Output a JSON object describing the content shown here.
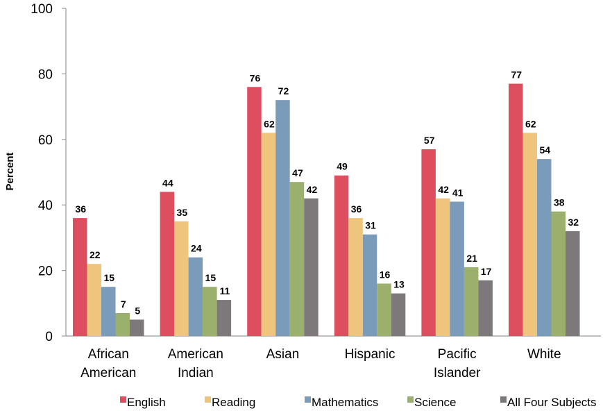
{
  "chart_data": {
    "type": "bar",
    "title": "",
    "xlabel": "",
    "ylabel": "Percent",
    "ylim": [
      0,
      100
    ],
    "yticks": [
      "0",
      "20",
      "40",
      "60",
      "80",
      "100"
    ],
    "grid": false,
    "legend_position": "bottom",
    "categories": [
      [
        "African",
        "American"
      ],
      [
        "American",
        "Indian"
      ],
      [
        "Asian"
      ],
      [
        "Hispanic"
      ],
      [
        "Pacific",
        "Islander"
      ],
      [
        "White"
      ]
    ],
    "series": [
      {
        "name": "English",
        "color": "#dd4f5f",
        "values": [
          36,
          44,
          76,
          49,
          57,
          77
        ]
      },
      {
        "name": "Reading",
        "color": "#efc57d",
        "values": [
          22,
          35,
          62,
          36,
          42,
          62
        ]
      },
      {
        "name": "Mathematics",
        "color": "#7b9bba",
        "values": [
          15,
          24,
          72,
          31,
          41,
          54
        ]
      },
      {
        "name": "Science",
        "color": "#9ab06c",
        "values": [
          7,
          15,
          47,
          16,
          21,
          38
        ]
      },
      {
        "name": "All Four Subjects",
        "color": "#7d7879",
        "values": [
          5,
          11,
          42,
          13,
          17,
          32
        ]
      }
    ]
  }
}
